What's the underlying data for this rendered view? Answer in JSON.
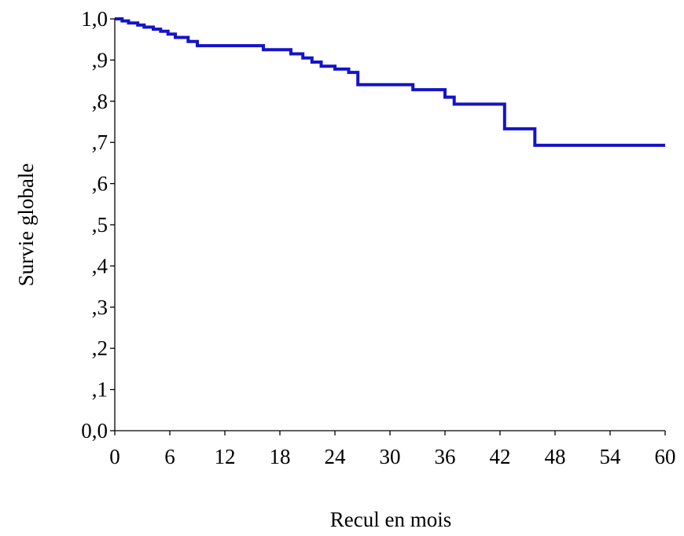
{
  "chart_data": {
    "type": "line",
    "step": true,
    "xlabel": "Recul en mois",
    "ylabel": "Survie globale",
    "xlim": [
      0,
      60
    ],
    "ylim": [
      0,
      1
    ],
    "grid": false,
    "legend": "none",
    "x_ticks": [
      "0",
      "6",
      "12",
      "18",
      "24",
      "30",
      "36",
      "42",
      "48",
      "54",
      "60"
    ],
    "x_tick_values": [
      0,
      6,
      12,
      18,
      24,
      30,
      36,
      42,
      48,
      54,
      60
    ],
    "y_ticks": [
      "0,0",
      ",1",
      ",2",
      ",3",
      ",4",
      ",5",
      ",6",
      ",7",
      ",8",
      ",9",
      "1,0"
    ],
    "y_tick_values": [
      0,
      0.1,
      0.2,
      0.3,
      0.4,
      0.5,
      0.6,
      0.7,
      0.8,
      0.9,
      1.0
    ],
    "series": [
      {
        "color": "#1414c8",
        "x": [
          0,
          0.8,
          1.5,
          2.5,
          3.2,
          4.2,
          5.0,
          5.8,
          6.6,
          8.0,
          9.0,
          16.2,
          19.2,
          20.5,
          21.5,
          22.5,
          24.0,
          25.5,
          26.5,
          31.0,
          32.5,
          36.0,
          37.0,
          42.5,
          45.8,
          60
        ],
        "y": [
          1.0,
          0.995,
          0.99,
          0.985,
          0.98,
          0.975,
          0.97,
          0.963,
          0.955,
          0.945,
          0.935,
          0.925,
          0.915,
          0.905,
          0.895,
          0.885,
          0.878,
          0.87,
          0.84,
          0.84,
          0.828,
          0.81,
          0.793,
          0.733,
          0.693,
          0.693
        ]
      }
    ]
  }
}
